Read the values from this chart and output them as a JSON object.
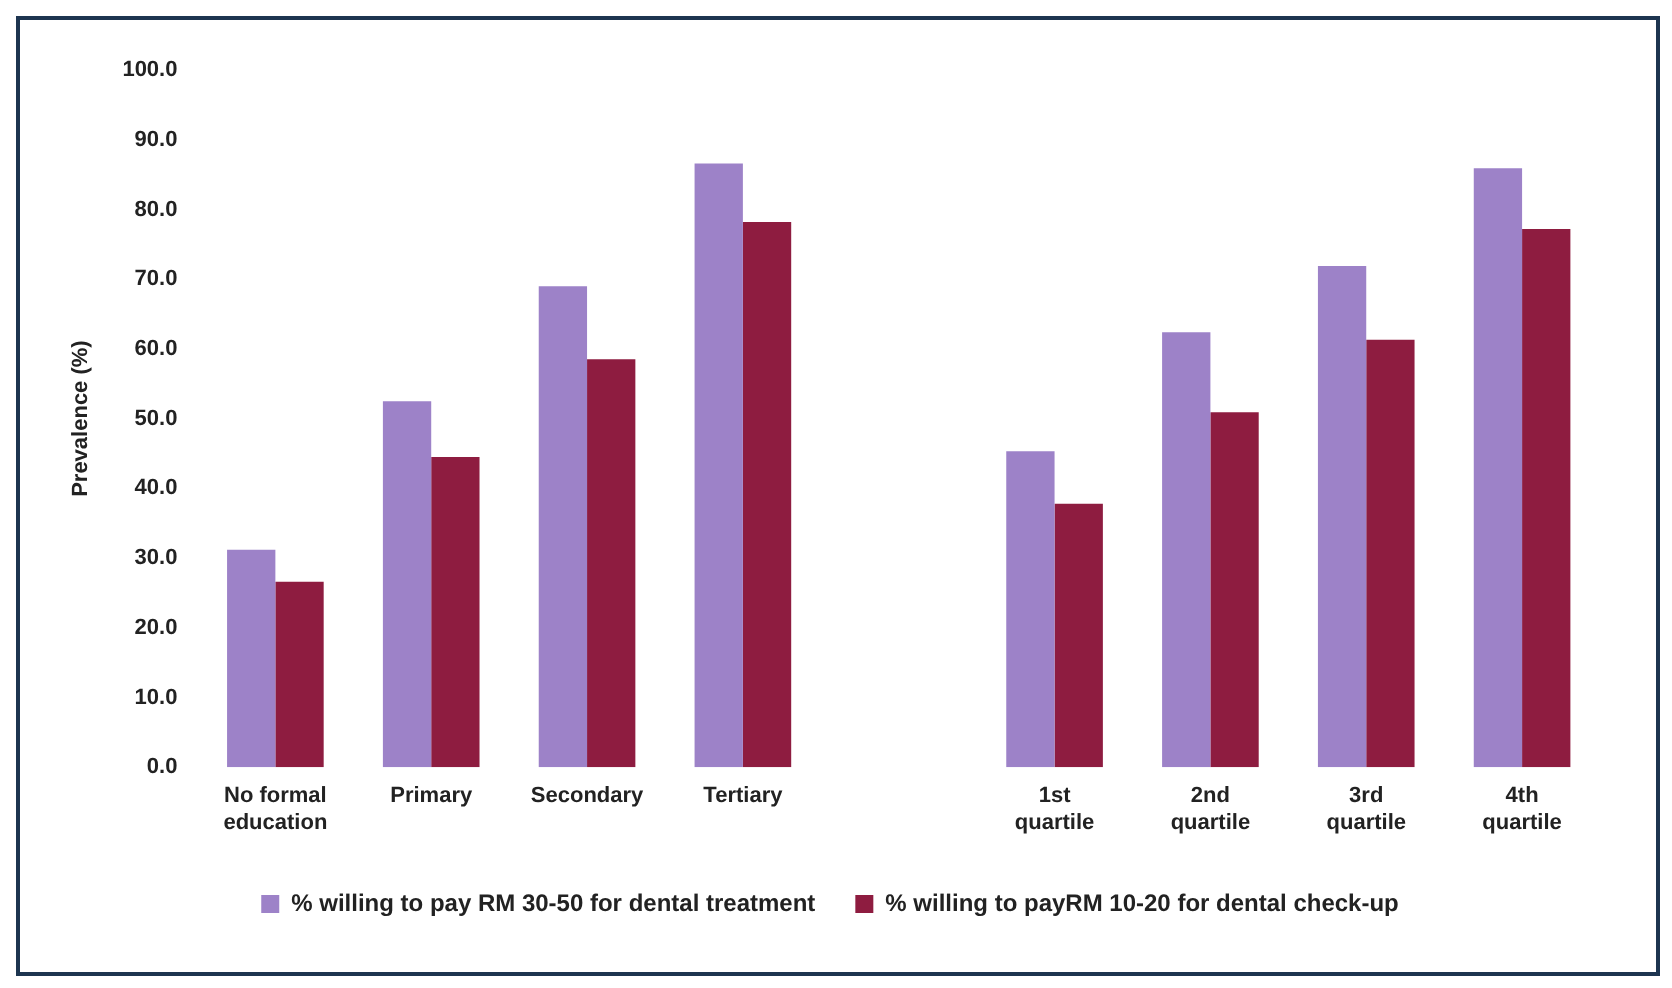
{
  "chart_data": {
    "type": "bar",
    "ylabel": "Prevalence (%)",
    "categories": [
      "No formal education",
      "Primary",
      "Secondary",
      "Tertiary",
      null,
      "1st quartile",
      "2nd quartile",
      "3rd quartile",
      "4th quartile"
    ],
    "series": [
      {
        "name": "% willing to pay RM 30-50 for dental treatment",
        "color": "#9d82c8",
        "values": [
          31.2,
          52.5,
          69.0,
          86.6,
          null,
          45.3,
          62.4,
          71.9,
          85.9
        ]
      },
      {
        "name": "% willing to payRM 10-20 for dental check-up",
        "color": "#8e1c40",
        "values": [
          26.6,
          44.5,
          58.5,
          78.2,
          null,
          37.8,
          50.9,
          61.3,
          77.2
        ]
      }
    ],
    "ylim": [
      0,
      100
    ],
    "yticks": [
      {
        "value": 0,
        "label": "0.0"
      },
      {
        "value": 10,
        "label": "10.0"
      },
      {
        "value": 20,
        "label": "20.0"
      },
      {
        "value": 30,
        "label": "30.0"
      },
      {
        "value": 40,
        "label": "40.0"
      },
      {
        "value": 50,
        "label": "50.0"
      },
      {
        "value": 60,
        "label": "60.0"
      },
      {
        "value": 70,
        "label": "70.0"
      },
      {
        "value": 80,
        "label": "80.0"
      },
      {
        "value": 90,
        "label": "90.0"
      },
      {
        "value": 100,
        "label": "100.0"
      }
    ],
    "grid": false,
    "legend": "bottom"
  }
}
